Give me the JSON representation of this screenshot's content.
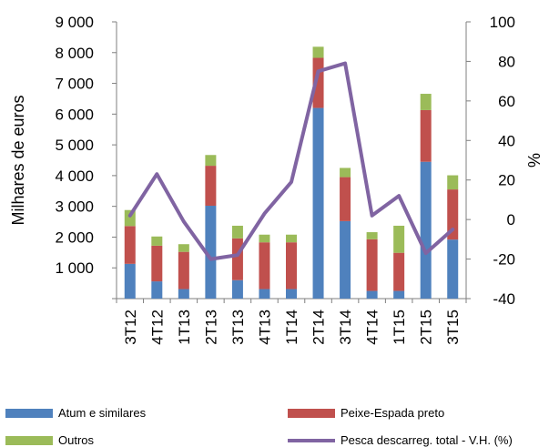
{
  "chart_data": {
    "type": "bar",
    "categories": [
      "3T12",
      "4T12",
      "1T13",
      "2T13",
      "3T13",
      "4T13",
      "1T14",
      "2T14",
      "3T14",
      "4T14",
      "1T15",
      "2T15",
      "3T15"
    ],
    "series": [
      {
        "name": "Atum e similares",
        "type": "stacked-bar",
        "axis": "left",
        "values": [
          1130,
          560,
          310,
          3020,
          600,
          310,
          310,
          6200,
          2520,
          250,
          250,
          4450,
          1920
        ]
      },
      {
        "name": "Peixe-Espada preto",
        "type": "stacked-bar",
        "axis": "left",
        "values": [
          1230,
          1160,
          1210,
          1300,
          1360,
          1520,
          1520,
          1630,
          1430,
          1680,
          1240,
          1680,
          1630
        ]
      },
      {
        "name": "Outros",
        "type": "stacked-bar",
        "axis": "left",
        "values": [
          520,
          300,
          250,
          350,
          410,
          250,
          250,
          360,
          300,
          230,
          880,
          530,
          460
        ]
      },
      {
        "name": "Pesca descarreg. total  - V.H. (%)",
        "type": "line",
        "axis": "right",
        "values": [
          2,
          23,
          -1,
          -20,
          -18,
          3,
          19,
          75,
          79,
          2,
          12,
          -17,
          -5
        ]
      }
    ],
    "y_left": {
      "label": "Milhares de euros",
      "lim": [
        0,
        9000
      ],
      "ticks": [
        "",
        "1 000",
        "2 000",
        "3 000",
        "4 000",
        "5 000",
        "6 000",
        "7 000",
        "8 000",
        "9 000"
      ]
    },
    "y_right": {
      "label": "%",
      "lim": [
        -40,
        100
      ],
      "ticks": [
        "-40",
        "-20",
        "0",
        "20",
        "40",
        "60",
        "80",
        "100"
      ]
    },
    "colors": {
      "atum": "#4F81BD",
      "peixe": "#C0504D",
      "outros": "#9BBB59",
      "line": "#8064A2",
      "axis": "#7f7f7f"
    },
    "legend": {
      "atum": "Atum e similares",
      "peixe": "Peixe-Espada preto",
      "outros": "Outros",
      "line": "Pesca descarreg. total  - V.H. (%)"
    },
    "grid": false,
    "legend_position": "bottom"
  }
}
